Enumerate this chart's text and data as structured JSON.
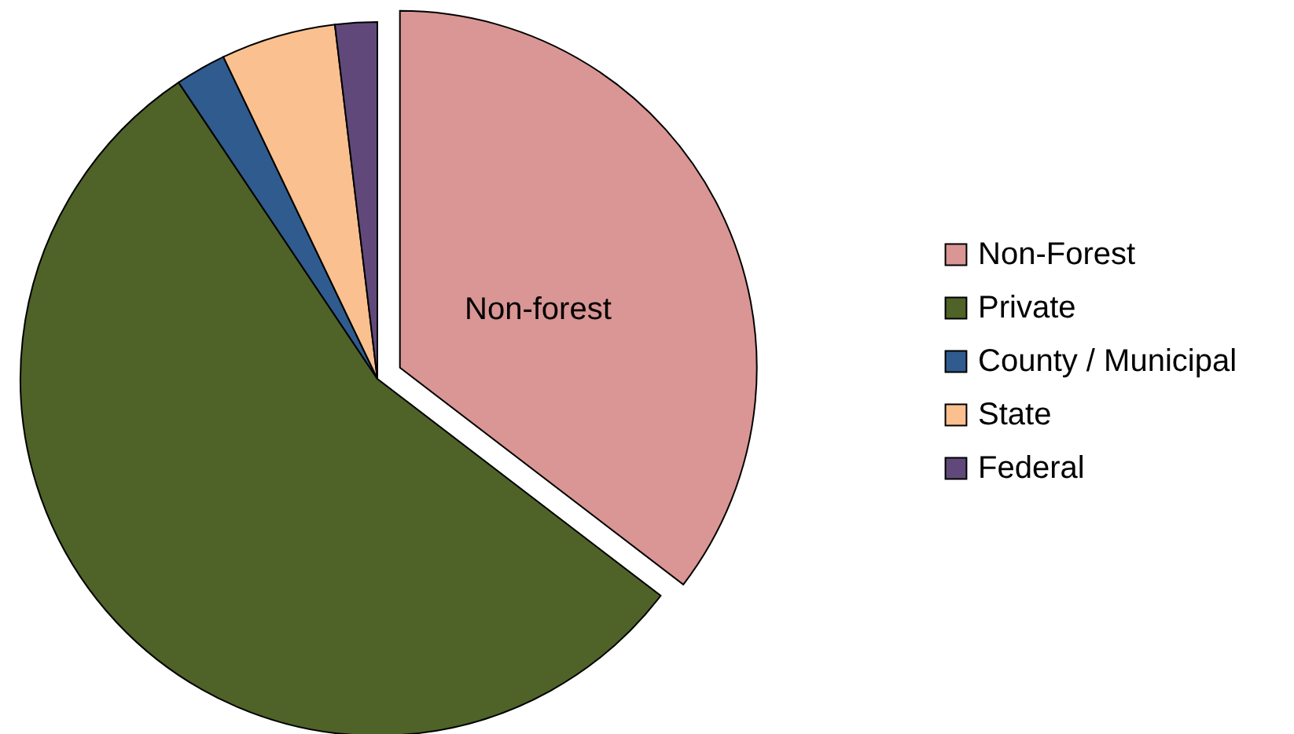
{
  "chart_data": {
    "type": "pie",
    "categories": [
      "Non-Forest",
      "Private",
      "County / Municipal",
      "State",
      "Federal"
    ],
    "values": [
      35.4,
      55.2,
      2.3,
      5.2,
      1.9
    ],
    "colors": [
      "#d99694",
      "#4f6228",
      "#2f5b8f",
      "#fac08f",
      "#60497a"
    ],
    "annotations": [
      "Non-forest"
    ],
    "legend": "right"
  }
}
